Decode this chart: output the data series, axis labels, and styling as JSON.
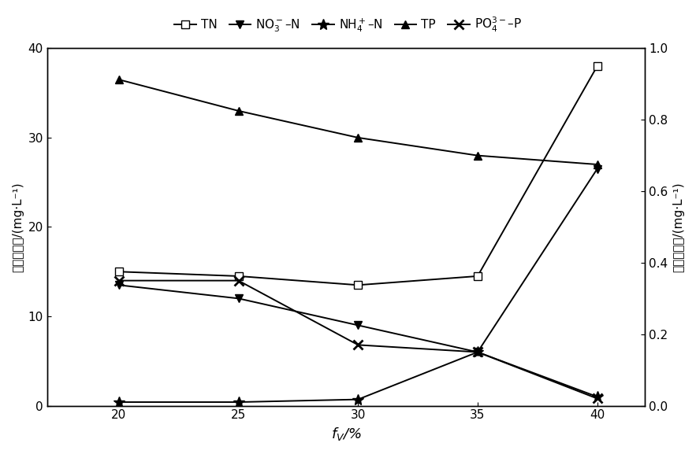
{
  "x": [
    20,
    25,
    30,
    35,
    40
  ],
  "TN": [
    15.0,
    14.5,
    13.5,
    14.5,
    38.0
  ],
  "NO3N": [
    13.5,
    12.0,
    9.0,
    6.0,
    26.5
  ],
  "NH4N": [
    0.4,
    0.4,
    0.7,
    6.0,
    1.0
  ],
  "TP": [
    36.5,
    33.0,
    30.0,
    28.0,
    27.0
  ],
  "PO4P": [
    0.35,
    0.35,
    0.17,
    0.15,
    0.02
  ],
  "left_ylim": [
    0,
    40
  ],
  "right_ylim": [
    0,
    1.0
  ],
  "left_yticks": [
    0,
    10,
    20,
    30,
    40
  ],
  "right_yticks": [
    0.0,
    0.2,
    0.4,
    0.6,
    0.8,
    1.0
  ],
  "xticks": [
    20,
    25,
    30,
    35,
    40
  ],
  "xlabel": "$f_{V}$/%",
  "ylabel_left": "出水氮浓度/(mg·L⁻¹)",
  "ylabel_right": "出水磷浓度/(mg·L⁻¹)",
  "legend_labels": [
    "TN",
    "NO$_3^-$–N",
    "NH$_4^+$–N",
    "TP",
    "PO$_4^{3-}$–P"
  ],
  "line_color": "#000000",
  "bg_color": "#ffffff",
  "figsize": [
    8.83,
    5.77
  ],
  "dpi": 100
}
